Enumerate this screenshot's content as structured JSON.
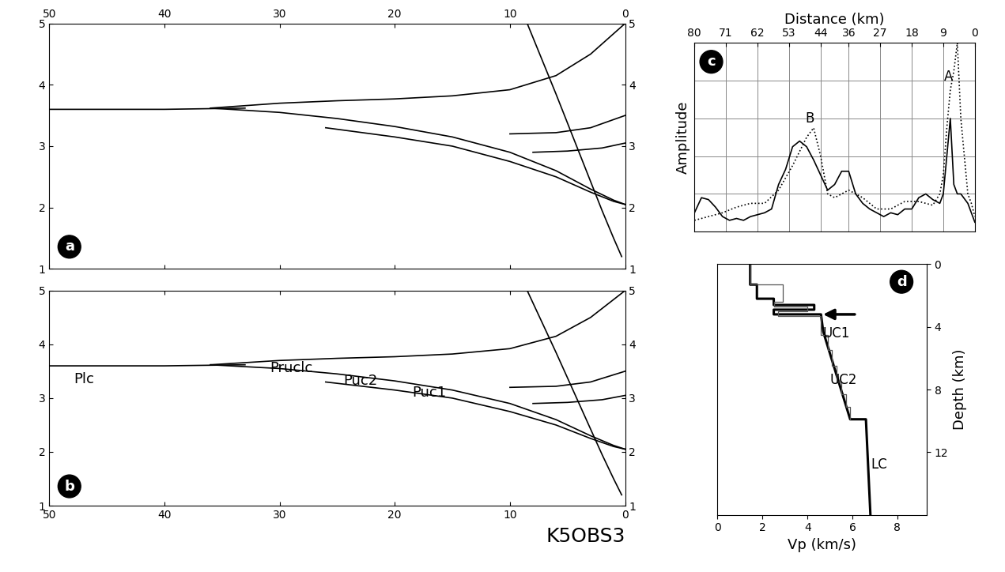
{
  "chart_data": [
    {
      "type": "line",
      "panel_label": "a",
      "xlim": [
        50,
        0
      ],
      "xticks": [
        50,
        40,
        30,
        20,
        10,
        0
      ],
      "ylim": [
        1,
        5
      ],
      "yticks": [
        1,
        2,
        3,
        4,
        5
      ],
      "series": [
        {
          "x": [
            50,
            40,
            33
          ],
          "values": [
            3.6,
            3.6,
            3.62
          ],
          "color": "#000000"
        },
        {
          "x": [
            36,
            30,
            25,
            20,
            15,
            10,
            6,
            3,
            0
          ],
          "values": [
            3.62,
            3.7,
            3.74,
            3.77,
            3.82,
            3.92,
            4.15,
            4.5,
            5.0
          ],
          "color": "#000000"
        },
        {
          "x": [
            36,
            30,
            25,
            20,
            15,
            10,
            6,
            3,
            1,
            0
          ],
          "values": [
            3.62,
            3.55,
            3.45,
            3.32,
            3.15,
            2.9,
            2.6,
            2.3,
            2.12,
            2.05
          ],
          "color": "#000000"
        },
        {
          "x": [
            26,
            20,
            15,
            10,
            6,
            3,
            1,
            0
          ],
          "values": [
            3.3,
            3.15,
            3.0,
            2.75,
            2.5,
            2.25,
            2.1,
            2.05
          ],
          "color": "#000000"
        },
        {
          "x": [
            10,
            6,
            3,
            0
          ],
          "values": [
            3.2,
            3.22,
            3.3,
            3.5
          ],
          "color": "#000000"
        },
        {
          "x": [
            8,
            5,
            2,
            0
          ],
          "values": [
            2.9,
            2.92,
            2.97,
            3.05
          ],
          "color": "#000000"
        },
        {
          "x": [
            8.5,
            6,
            4,
            2,
            1,
            0.3
          ],
          "values": [
            5.0,
            3.85,
            2.9,
            1.95,
            1.5,
            1.2
          ],
          "color": "#000000"
        }
      ]
    },
    {
      "type": "line",
      "panel_label": "b",
      "station": "K5OBS3",
      "xlim": [
        50,
        0
      ],
      "xticks": [
        50,
        40,
        30,
        20,
        10,
        0
      ],
      "ylim": [
        1,
        5
      ],
      "yticks": [
        1,
        2,
        3,
        4,
        5
      ],
      "series": [
        {
          "x": [
            50,
            40,
            33
          ],
          "values": [
            3.6,
            3.6,
            3.62
          ],
          "color": "#000000"
        },
        {
          "x": [
            36,
            30,
            25,
            20,
            15,
            10,
            6,
            3,
            0
          ],
          "values": [
            3.62,
            3.7,
            3.74,
            3.77,
            3.82,
            3.92,
            4.15,
            4.5,
            5.0
          ],
          "color": "#000000"
        },
        {
          "x": [
            36,
            30,
            25,
            20,
            15,
            10,
            6,
            3,
            1,
            0
          ],
          "values": [
            3.62,
            3.55,
            3.45,
            3.32,
            3.15,
            2.9,
            2.6,
            2.3,
            2.12,
            2.05
          ],
          "color": "#000000"
        },
        {
          "x": [
            26,
            20,
            15,
            10,
            6,
            3,
            1,
            0
          ],
          "values": [
            3.3,
            3.15,
            3.0,
            2.75,
            2.5,
            2.25,
            2.1,
            2.05
          ],
          "color": "#000000"
        },
        {
          "x": [
            10,
            6,
            3,
            0
          ],
          "values": [
            3.2,
            3.22,
            3.3,
            3.5
          ],
          "color": "#000000"
        },
        {
          "x": [
            8,
            5,
            2,
            0
          ],
          "values": [
            2.9,
            2.92,
            2.97,
            3.05
          ],
          "color": "#000000"
        },
        {
          "x": [
            8.5,
            6,
            4,
            2,
            1,
            0.3
          ],
          "values": [
            5.0,
            3.85,
            2.9,
            1.95,
            1.5,
            1.2
          ],
          "color": "#000000"
        }
      ],
      "annotations": [
        {
          "text": "Plc",
          "x": 47,
          "y": 3.35
        },
        {
          "text": "Pruclc",
          "x": 29,
          "y": 3.55
        },
        {
          "text": "Puc2",
          "x": 23,
          "y": 3.32
        },
        {
          "text": "Puc1",
          "x": 17,
          "y": 3.1
        }
      ]
    },
    {
      "type": "line",
      "panel_label": "c",
      "xlabel": "Distance (km)",
      "ylabel": "Amplitude",
      "xlim": [
        80,
        0
      ],
      "xticks": [
        80,
        71,
        62,
        53,
        44,
        36,
        27,
        18,
        9,
        0
      ],
      "ylim": [
        0,
        1
      ],
      "yticks": [
        0.2,
        0.4,
        0.6,
        0.8
      ],
      "grid": true,
      "tick_labels": "x",
      "series": [
        {
          "x": [
            80,
            78,
            76,
            74,
            72,
            70,
            68,
            66,
            64,
            62,
            60,
            58,
            56,
            54,
            52,
            50,
            48,
            46,
            44,
            42,
            40,
            38,
            36,
            34,
            32,
            30,
            28,
            26,
            24,
            22,
            20,
            18,
            16,
            14,
            12,
            10,
            9,
            8,
            7,
            6,
            5,
            4,
            2,
            1,
            0
          ],
          "values": [
            0.1,
            0.18,
            0.17,
            0.13,
            0.08,
            0.06,
            0.07,
            0.06,
            0.08,
            0.09,
            0.1,
            0.12,
            0.25,
            0.33,
            0.45,
            0.48,
            0.45,
            0.38,
            0.3,
            0.22,
            0.25,
            0.32,
            0.32,
            0.2,
            0.15,
            0.12,
            0.1,
            0.08,
            0.1,
            0.09,
            0.12,
            0.12,
            0.18,
            0.2,
            0.17,
            0.15,
            0.2,
            0.4,
            0.6,
            0.25,
            0.2,
            0.2,
            0.15,
            0.1,
            0.05
          ],
          "color": "#000000",
          "line_style": "solid"
        },
        {
          "x": [
            80,
            76,
            72,
            68,
            64,
            60,
            56,
            52,
            48,
            46,
            44,
            42,
            40,
            36,
            32,
            28,
            24,
            20,
            16,
            12,
            10,
            9,
            8,
            7,
            6,
            5,
            4,
            2,
            1,
            0
          ],
          "values": [
            0.06,
            0.08,
            0.1,
            0.13,
            0.15,
            0.15,
            0.22,
            0.35,
            0.5,
            0.55,
            0.4,
            0.2,
            0.18,
            0.22,
            0.18,
            0.12,
            0.12,
            0.16,
            0.16,
            0.14,
            0.2,
            0.3,
            0.55,
            0.75,
            0.85,
            1.0,
            0.6,
            0.2,
            0.15,
            0.08
          ],
          "color": "#000000",
          "line_style": "dotted"
        }
      ],
      "annotations": [
        {
          "text": "A",
          "x": 7.5,
          "y": 0.82
        },
        {
          "text": "B",
          "x": 47,
          "y": 0.6
        }
      ]
    },
    {
      "type": "line",
      "panel_label": "d",
      "xlabel": "Vp (km/s)",
      "ylabel": "Depth (km)",
      "xlim": [
        0,
        9.3
      ],
      "xticks": [
        0,
        2,
        4,
        6,
        8
      ],
      "ylim": [
        16,
        0
      ],
      "yticks": [
        0,
        4,
        8,
        12
      ],
      "series": [
        {
          "x": [
            1.45,
            1.45,
            1.75,
            1.75,
            2.5,
            2.5,
            4.3,
            4.3,
            2.5,
            2.5,
            4.6,
            4.7,
            5.9,
            6.6,
            6.8
          ],
          "values": [
            0,
            1.3,
            1.3,
            2.2,
            2.2,
            2.6,
            2.6,
            2.9,
            2.9,
            3.2,
            3.2,
            4.3,
            9.9,
            9.9,
            16
          ],
          "color": "#000000",
          "line_style": "solid"
        },
        {
          "x": [
            1.45,
            1.45,
            2.9,
            2.9,
            2.5,
            2.5,
            4.0,
            4.0,
            2.7,
            2.7,
            4.6,
            4.6,
            4.9,
            4.9,
            5.1,
            5.1,
            5.3,
            5.3,
            5.5,
            5.5,
            5.7,
            5.7,
            5.9,
            5.9
          ],
          "values": [
            0,
            1.3,
            1.3,
            2.4,
            2.4,
            2.7,
            2.7,
            3.0,
            3.0,
            3.3,
            3.3,
            4.5,
            4.5,
            5.5,
            5.5,
            6.5,
            6.5,
            7.5,
            7.5,
            8.3,
            8.3,
            9.1,
            9.1,
            9.9
          ],
          "color": "#555555",
          "line_style": "solid"
        }
      ],
      "annotations": [
        {
          "text": "UC1",
          "x": 5.3,
          "y": 4.4
        },
        {
          "text": "UC2",
          "x": 5.6,
          "y": 7.4
        },
        {
          "text": "LC",
          "x": 7.2,
          "y": 12.8
        }
      ]
    }
  ]
}
